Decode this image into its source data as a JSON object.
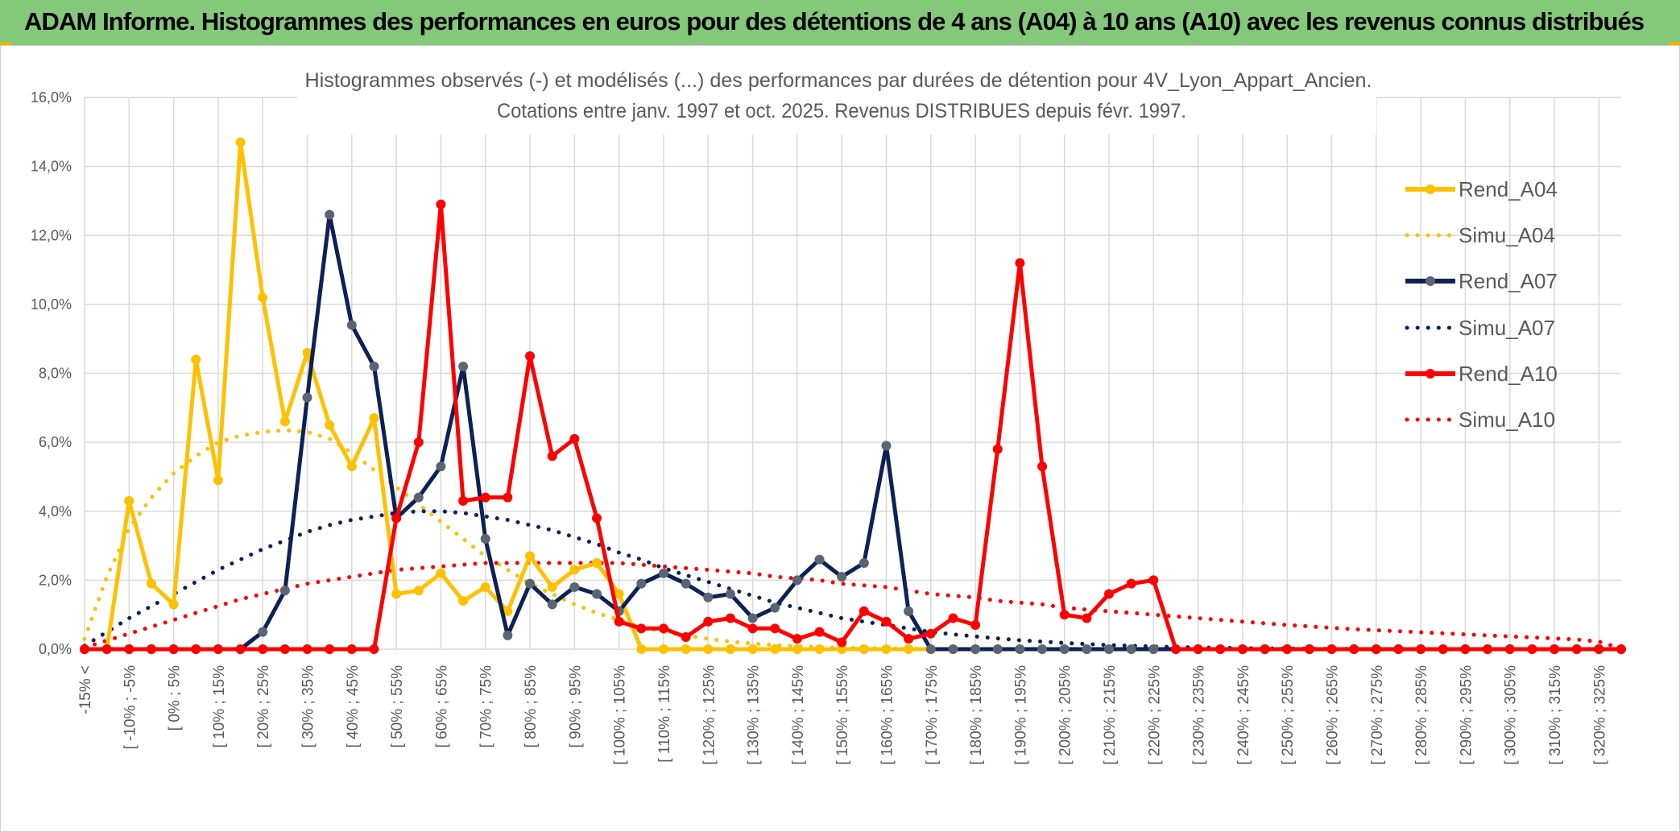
{
  "banner": {
    "title": "ADAM Informe. Histogrammes des performances en euros pour des détentions de 4 ans (A04) à 10 ans (A10) avec les revenus connus distribués"
  },
  "colors": {
    "banner_bg": "#84c87a",
    "a04": "#ffc000",
    "a07": "#0c2156",
    "a07_marker": "#5a6472",
    "a10": "#ff0000",
    "grid": "#d9d9d9",
    "text": "#595959"
  },
  "chart_data": {
    "type": "line",
    "title": "Histogrammes observés (-) et modélisés (...) des performances par durées de détention pour 4V_Lyon_Appart_Ancien.",
    "subtitle": "Cotations entre janv. 1997 et oct. 2025. Revenus DISTRIBUES depuis févr. 1997.",
    "xlabel": "",
    "ylabel": "",
    "ylim": [
      0,
      16
    ],
    "yticks": [
      "0,0%",
      "2,0%",
      "4,0%",
      "6,0%",
      "8,0%",
      "10,0%",
      "12,0%",
      "14,0%",
      "16,0%"
    ],
    "grid": true,
    "legend_position": "right",
    "categories": [
      "-15% <",
      "",
      "[ -10% ; -5%",
      "",
      "[ 0% ; 5%",
      "",
      "[ 10% ; 15%",
      "",
      "[ 20% ; 25%",
      "",
      "[ 30% ; 35%",
      "",
      "[ 40% ; 45%",
      "",
      "[ 50% ; 55%",
      "",
      "[ 60% ; 65%",
      "",
      "[ 70% ; 75%",
      "",
      "[ 80% ; 85%",
      "",
      "[ 90% ; 95%",
      "",
      "[ 100% ; 105%",
      "",
      "[ 110% ; 115%",
      "",
      "[ 120% ; 125%",
      "",
      "[ 130% ; 135%",
      "",
      "[ 140% ; 145%",
      "",
      "[ 150% ; 155%",
      "",
      "[ 160% ; 165%",
      "",
      "[ 170% ; 175%",
      "",
      "[ 180% ; 185%",
      "",
      "[ 190% ; 195%",
      "",
      "[ 200% ; 205%",
      "",
      "[ 210% ; 215%",
      "",
      "[ 220% ; 225%",
      "",
      "[ 230% ; 235%",
      "",
      "[ 240% ; 245%",
      "",
      "[ 250% ; 255%",
      "",
      "[ 260% ; 265%",
      "",
      "[ 270% ; 275%",
      "",
      "[ 280% ; 285%",
      "",
      "[ 290% ; 295%",
      "",
      "[ 300% ; 305%",
      "",
      "[ 310% ; 315%",
      "",
      "[ 320% ; 325%",
      ""
    ],
    "series": [
      {
        "name": "Rend_A04",
        "style": "solid",
        "values": [
          0,
          0,
          4.3,
          1.9,
          1.3,
          8.4,
          4.9,
          14.7,
          10.2,
          6.6,
          8.6,
          6.5,
          5.3,
          6.7,
          1.6,
          1.7,
          2.2,
          1.4,
          1.8,
          1.1,
          2.7,
          1.8,
          2.3,
          2.5,
          1.6,
          0,
          0,
          0,
          0,
          0,
          0,
          0,
          0,
          0,
          0,
          0,
          0,
          0,
          0,
          0,
          0,
          0,
          0,
          0,
          0,
          0,
          0,
          0,
          0,
          0,
          0,
          0,
          0,
          0,
          0,
          0,
          0,
          0,
          0,
          0,
          0,
          0,
          0,
          0,
          0,
          0,
          0,
          0,
          0,
          0
        ]
      },
      {
        "name": "Simu_A04",
        "style": "dotted",
        "values": [
          0.3,
          2.1,
          3.5,
          4.4,
          5.1,
          5.6,
          6.0,
          6.2,
          6.3,
          6.35,
          6.3,
          6.1,
          5.7,
          5.2,
          4.7,
          4.2,
          3.7,
          3.2,
          2.7,
          2.3,
          1.9,
          1.6,
          1.3,
          1.05,
          0.85,
          0.65,
          0.5,
          0.4,
          0.3,
          0.22,
          0.16,
          0.12,
          0.09,
          0.06,
          0.04,
          0.03,
          0.02,
          0.01,
          0.01,
          0,
          0,
          0,
          0,
          0,
          0,
          0,
          0,
          0,
          0,
          0,
          0,
          0,
          0,
          0,
          0,
          0,
          0,
          0,
          0,
          0,
          0,
          0,
          0,
          0,
          0,
          0,
          0,
          0,
          0,
          0
        ]
      },
      {
        "name": "Rend_A07",
        "style": "solid",
        "values": [
          0,
          0,
          0,
          0,
          0,
          0,
          0,
          0,
          0.5,
          1.7,
          7.3,
          12.6,
          9.4,
          8.2,
          3.8,
          4.4,
          5.3,
          8.2,
          3.2,
          0.4,
          1.9,
          1.3,
          1.8,
          1.6,
          1.1,
          1.9,
          2.2,
          1.9,
          1.5,
          1.6,
          0.9,
          1.2,
          2.0,
          2.6,
          2.1,
          2.5,
          5.9,
          1.1,
          0,
          0,
          0,
          0,
          0,
          0,
          0,
          0,
          0,
          0,
          0,
          0,
          0,
          0,
          0,
          0,
          0,
          0,
          0,
          0,
          0,
          0,
          0,
          0,
          0,
          0,
          0,
          0,
          0,
          0,
          0,
          0
        ]
      },
      {
        "name": "Simu_A07",
        "style": "dotted",
        "values": [
          0.1,
          0.5,
          0.9,
          1.25,
          1.6,
          1.95,
          2.3,
          2.6,
          2.9,
          3.15,
          3.4,
          3.6,
          3.75,
          3.85,
          3.95,
          4.0,
          4.0,
          3.95,
          3.85,
          3.75,
          3.6,
          3.45,
          3.25,
          3.05,
          2.8,
          2.6,
          2.35,
          2.15,
          1.95,
          1.75,
          1.55,
          1.35,
          1.2,
          1.05,
          0.9,
          0.8,
          0.7,
          0.6,
          0.5,
          0.43,
          0.37,
          0.31,
          0.26,
          0.22,
          0.18,
          0.15,
          0.12,
          0.1,
          0.08,
          0.06,
          0.05,
          0.04,
          0.03,
          0.02,
          0.02,
          0.01,
          0.01,
          0.01,
          0,
          0,
          0,
          0,
          0,
          0,
          0,
          0,
          0,
          0,
          0,
          0
        ]
      },
      {
        "name": "Rend_A10",
        "style": "solid",
        "values": [
          0,
          0,
          0,
          0,
          0,
          0,
          0,
          0,
          0,
          0,
          0,
          0,
          0,
          0,
          3.8,
          6.0,
          12.9,
          4.3,
          4.4,
          4.4,
          8.5,
          5.6,
          6.1,
          3.8,
          0.8,
          0.6,
          0.6,
          0.35,
          0.8,
          0.9,
          0.6,
          0.6,
          0.3,
          0.5,
          0.2,
          1.1,
          0.8,
          0.3,
          0.45,
          0.9,
          0.7,
          5.8,
          11.2,
          5.3,
          1.0,
          0.9,
          1.6,
          1.9,
          2.0,
          0,
          0,
          0,
          0,
          0,
          0,
          0,
          0,
          0,
          0,
          0,
          0,
          0,
          0,
          0,
          0,
          0,
          0,
          0,
          0,
          0
        ]
      },
      {
        "name": "Simu_A10",
        "style": "dotted",
        "values": [
          0.05,
          0.25,
          0.45,
          0.65,
          0.85,
          1.05,
          1.25,
          1.45,
          1.6,
          1.75,
          1.9,
          2.0,
          2.1,
          2.2,
          2.3,
          2.35,
          2.4,
          2.45,
          2.5,
          2.5,
          2.5,
          2.5,
          2.5,
          2.5,
          2.5,
          2.45,
          2.4,
          2.35,
          2.3,
          2.25,
          2.2,
          2.1,
          2.05,
          2.0,
          1.9,
          1.85,
          1.8,
          1.7,
          1.6,
          1.55,
          1.5,
          1.4,
          1.35,
          1.3,
          1.2,
          1.15,
          1.1,
          1.05,
          1.0,
          0.95,
          0.9,
          0.85,
          0.8,
          0.75,
          0.7,
          0.66,
          0.62,
          0.58,
          0.55,
          0.52,
          0.49,
          0.46,
          0.43,
          0.4,
          0.37,
          0.34,
          0.31,
          0.28,
          0.22,
          0.02
        ]
      }
    ]
  }
}
